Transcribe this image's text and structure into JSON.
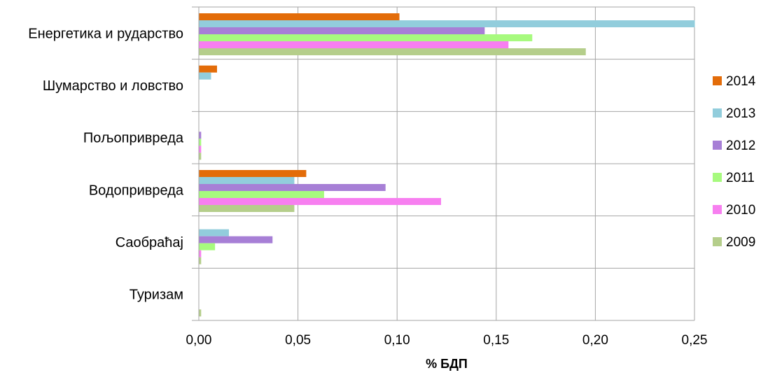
{
  "chart_data": {
    "type": "bar",
    "orientation": "horizontal",
    "categories": [
      "Енергетика и рударство",
      "Шумарство и ловство",
      "Пољопривреда",
      "Водопривреда",
      "Саобраћај",
      "Туризам"
    ],
    "series": [
      {
        "name": "2014",
        "color": "#E36C09",
        "values": [
          0.101,
          0.009,
          0.0,
          0.054,
          0.0,
          0.0
        ]
      },
      {
        "name": "2013",
        "color": "#92CDDC",
        "values": [
          0.25,
          0.006,
          0.0,
          0.048,
          0.015,
          0.0
        ]
      },
      {
        "name": "2012",
        "color": "#A77FD6",
        "values": [
          0.144,
          0.0,
          0.001,
          0.094,
          0.037,
          0.0
        ]
      },
      {
        "name": "2011",
        "color": "#A7FA7E",
        "values": [
          0.168,
          0.0,
          0.001,
          0.063,
          0.008,
          0.0
        ]
      },
      {
        "name": "2010",
        "color": "#F77FF0",
        "values": [
          0.156,
          0.0,
          0.001,
          0.122,
          0.001,
          0.0
        ]
      },
      {
        "name": "2009",
        "color": "#B5CE8B",
        "values": [
          0.195,
          0.0,
          0.001,
          0.048,
          0.001,
          0.001
        ]
      }
    ],
    "xlabel": "% БДП",
    "xlim": [
      0,
      0.25
    ],
    "xticks": [
      "0,00",
      "0,05",
      "0,10",
      "0,15",
      "0,20",
      "0,25"
    ],
    "grid": true,
    "legend_position": "right"
  }
}
